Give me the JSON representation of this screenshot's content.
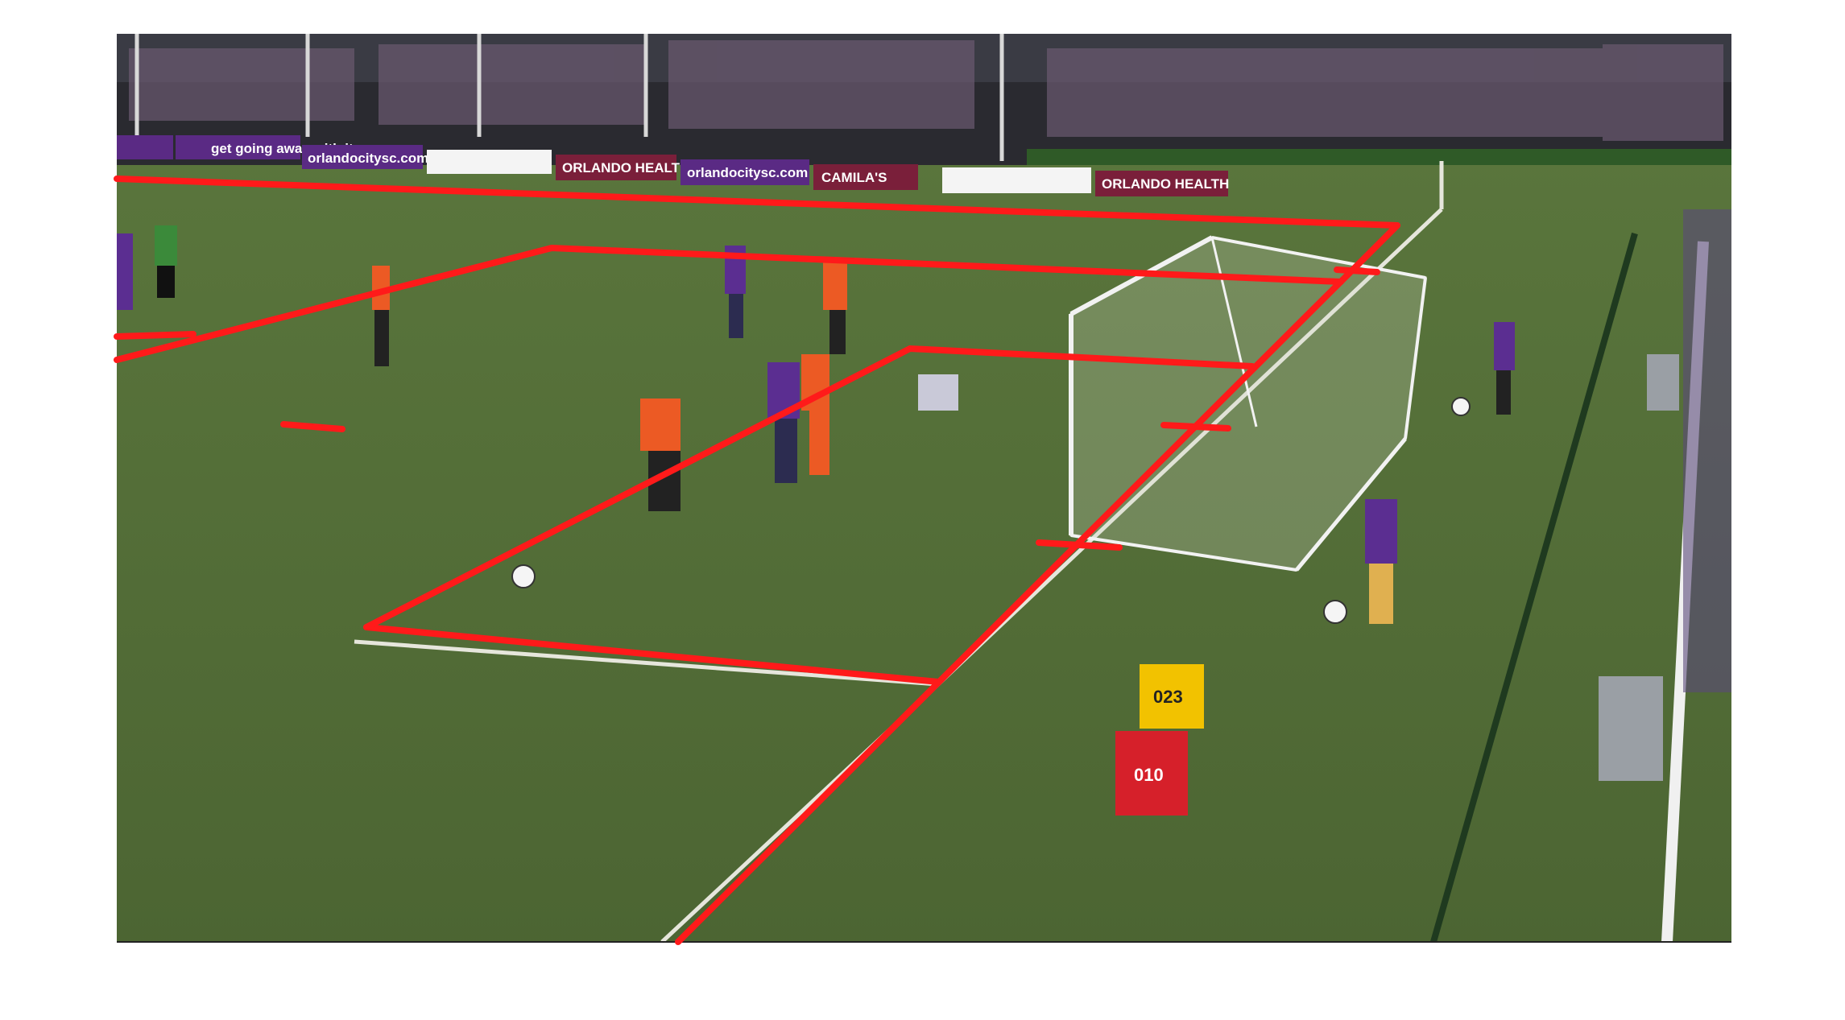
{
  "scene": {
    "kind": "soccer-match-broadcast-frame",
    "overlay_color": "#ff1a1a",
    "pitch_color": "#4f6a2f",
    "field_line_color": "#e8e8e0"
  },
  "ad_boards": [
    {
      "text": "get going away with it",
      "bg": "#5a2a84",
      "fg": "#ffffff"
    },
    {
      "text": "orlandocitysc.com",
      "bg": "#5a2a84",
      "fg": "#ffffff"
    },
    {
      "text": "ORLANDO HEALTH",
      "bg": "#7a1f3a",
      "fg": "#ffffff"
    },
    {
      "text": "orlandocitysc.com",
      "bg": "#5a2a84",
      "fg": "#ffffff"
    },
    {
      "text": "CAMILA'S",
      "bg": "#7a1f3a",
      "fg": "#ffffff"
    },
    {
      "text": "ORLANDO HEALTH",
      "bg": "#7a1f3a",
      "fg": "#ffffff"
    }
  ],
  "photographers": [
    {
      "bib": "023",
      "vest": "#f2c200"
    },
    {
      "bib": "010",
      "vest": "#d6202a"
    }
  ],
  "teams": {
    "home_kit": "#5b2e91",
    "away_kit": "#ec5a24"
  }
}
